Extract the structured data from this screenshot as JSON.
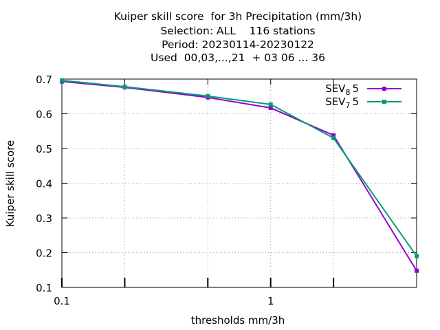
{
  "chart_data": {
    "type": "line",
    "title_lines": [
      "Kuiper skill score  for 3h Precipitation (mm/3h)",
      "Selection: ALL    116 stations",
      "Period: 20230114-20230122",
      "Used  00,03,...,21  + 03 06 ... 36"
    ],
    "xlabel": "thresholds mm/3h",
    "ylabel": "Kuiper skill score",
    "x_scale": "log",
    "xlim": [
      0.1,
      5
    ],
    "ylim": [
      0.1,
      0.7
    ],
    "x_ticks": [
      0.1,
      1
    ],
    "x_tick_labels": [
      "0.1",
      "1"
    ],
    "x_minor_ticks": [
      0.2,
      0.5,
      2
    ],
    "y_ticks": [
      0.1,
      0.2,
      0.3,
      0.4,
      0.5,
      0.6,
      0.7
    ],
    "y_tick_labels": [
      "0.1",
      "0.2",
      "0.3",
      "0.4",
      "0.5",
      "0.6",
      "0.7"
    ],
    "grid": true,
    "legend_position": "top-right",
    "x": [
      0.1,
      0.2,
      0.5,
      1,
      2,
      5
    ],
    "series": [
      {
        "name": "SEV",
        "subscript": "8",
        "suffix": "5",
        "color": "#9400d3",
        "values": [
          0.693,
          0.676,
          0.647,
          0.617,
          0.538,
          0.148
        ]
      },
      {
        "name": "SEV",
        "subscript": "7",
        "suffix": "5",
        "color": "#009e73",
        "values": [
          0.696,
          0.678,
          0.651,
          0.627,
          0.53,
          0.19
        ]
      }
    ]
  }
}
